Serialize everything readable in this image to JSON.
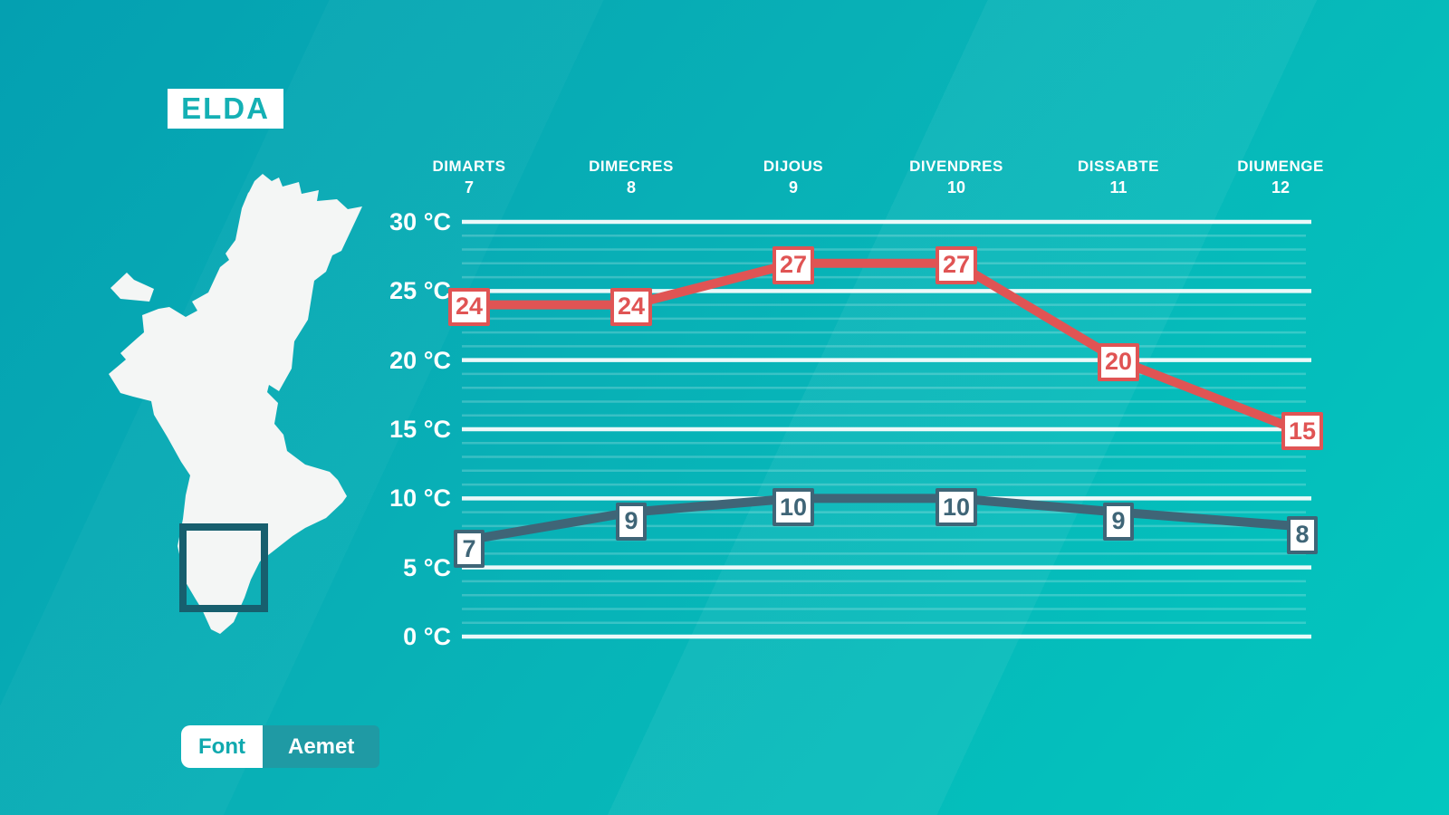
{
  "location_badge": "ELDA",
  "source_badge": {
    "label": "Font",
    "value": "Aemet"
  },
  "colors": {
    "background_top_left": "#04a0b1",
    "background_bottom_right": "#02c7bf",
    "max_line": "#e05454",
    "min_line": "#3f6577",
    "grid": "#ffffff",
    "badge_text_teal": "#14b0b4",
    "map_fill": "#f4f6f5",
    "area_marker_stroke": "#175f6e"
  },
  "chart_data": {
    "type": "line",
    "title": "",
    "unit": "°C",
    "categories": [
      {
        "label": "DIMARTS",
        "date": "7"
      },
      {
        "label": "DIMECRES",
        "date": "8"
      },
      {
        "label": "DIJOUS",
        "date": "9"
      },
      {
        "label": "DIVENDRES",
        "date": "10"
      },
      {
        "label": "DISSABTE",
        "date": "11"
      },
      {
        "label": "DIUMENGE",
        "date": "12"
      }
    ],
    "series": [
      {
        "name": "max_temp",
        "color": "#e05454",
        "values": [
          24,
          24,
          27,
          27,
          20,
          15
        ]
      },
      {
        "name": "min_temp",
        "color": "#3f6577",
        "values": [
          7,
          9,
          10,
          10,
          9,
          8
        ]
      }
    ],
    "ylim": [
      0,
      30
    ],
    "yticks": [
      0,
      5,
      10,
      15,
      20,
      25,
      30
    ],
    "ytick_labels": [
      "30 °C",
      "25 °C",
      "20 °C",
      "15 °C",
      "10 °C",
      "5 °C",
      "0 °C"
    ],
    "minor_grid_step": 1,
    "grid": "on",
    "legend": "none"
  }
}
